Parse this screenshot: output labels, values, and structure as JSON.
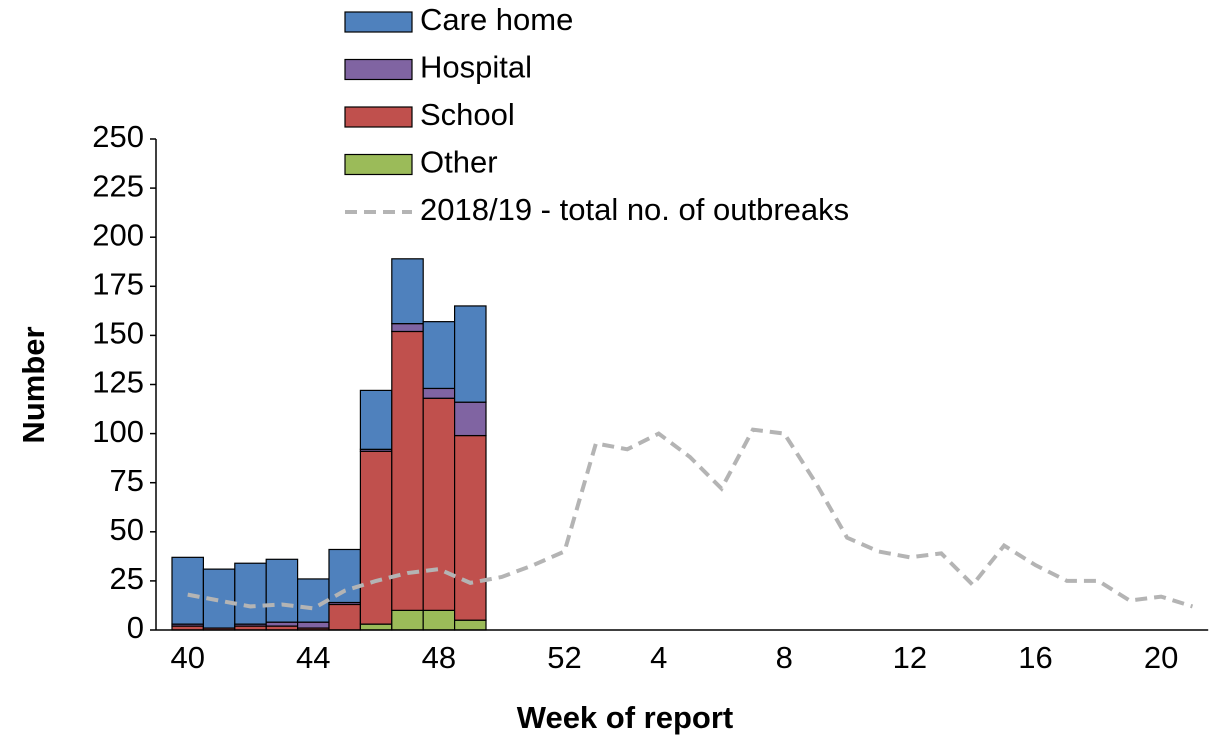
{
  "chart_data": {
    "type": "bar",
    "stacked": true,
    "x_label": "Week of report",
    "y_label": "Number",
    "categories": [
      40,
      null,
      null,
      null,
      44,
      null,
      null,
      null,
      48,
      null,
      null,
      null,
      52,
      null,
      null,
      4,
      null,
      null,
      null,
      8,
      null,
      null,
      null,
      12,
      null,
      null,
      null,
      16,
      null,
      null,
      null,
      20,
      null
    ],
    "ylim": [
      0,
      250
    ],
    "yticks": [
      0,
      25,
      50,
      75,
      100,
      125,
      150,
      175,
      200,
      225,
      250
    ],
    "series": [
      {
        "name": "Care home",
        "color": "#4f81bd",
        "values": [
          34,
          30,
          31,
          32,
          22,
          27,
          30,
          33,
          34,
          49,
          null,
          null,
          null,
          null,
          null,
          null,
          null,
          null,
          null,
          null,
          null,
          null,
          null,
          null,
          null,
          null,
          null,
          null,
          null,
          null,
          null,
          null,
          null
        ]
      },
      {
        "name": "Hospital",
        "color": "#8064a2",
        "values": [
          1,
          0,
          1,
          2,
          3,
          1,
          1,
          4,
          5,
          17,
          null,
          null,
          null,
          null,
          null,
          null,
          null,
          null,
          null,
          null,
          null,
          null,
          null,
          null,
          null,
          null,
          null,
          null,
          null,
          null,
          null,
          null,
          null
        ]
      },
      {
        "name": "School",
        "color": "#c0504d",
        "values": [
          2,
          1,
          2,
          2,
          1,
          13,
          88,
          142,
          108,
          94,
          null,
          null,
          null,
          null,
          null,
          null,
          null,
          null,
          null,
          null,
          null,
          null,
          null,
          null,
          null,
          null,
          null,
          null,
          null,
          null,
          null,
          null,
          null
        ]
      },
      {
        "name": "Other",
        "color": "#9bbb59",
        "values": [
          0,
          0,
          0,
          0,
          0,
          0,
          3,
          10,
          10,
          5,
          null,
          null,
          null,
          null,
          null,
          null,
          null,
          null,
          null,
          null,
          null,
          null,
          null,
          null,
          null,
          null,
          null,
          null,
          null,
          null,
          null,
          null,
          null
        ]
      },
      {
        "name": "2018/19 - total no. of outbreaks",
        "type": "line",
        "dashed": true,
        "color": "#b4b4b4",
        "values": [
          18,
          15,
          12,
          13,
          11,
          20,
          25,
          29,
          31,
          24,
          27,
          33,
          40,
          95,
          92,
          100,
          88,
          72,
          102,
          100,
          75,
          47,
          40,
          37,
          39,
          23,
          43,
          33,
          25,
          25,
          15,
          17,
          12
        ]
      }
    ]
  }
}
